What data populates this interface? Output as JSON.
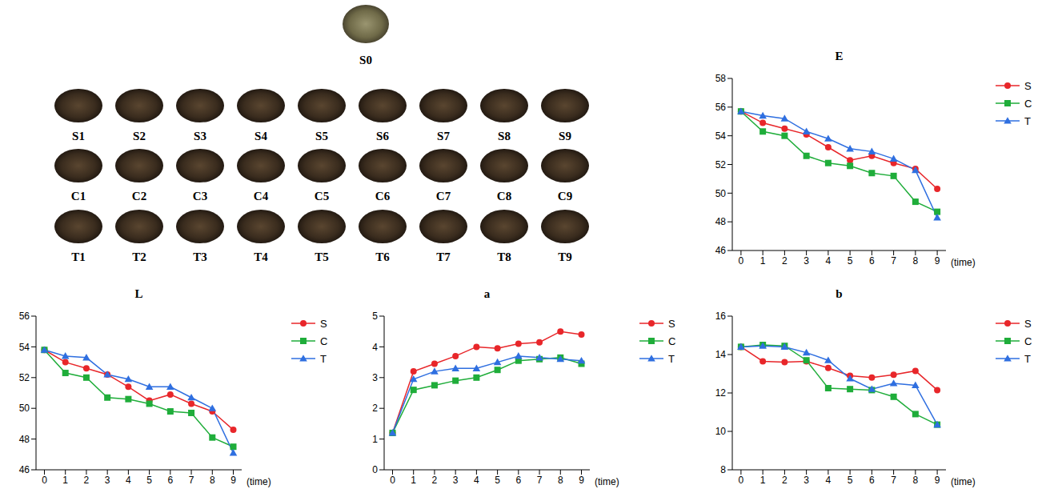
{
  "sample_images": {
    "top": "S0",
    "rows": [
      [
        "S1",
        "S2",
        "S3",
        "S4",
        "S5",
        "S6",
        "S7",
        "S8",
        "S9"
      ],
      [
        "C1",
        "C2",
        "C3",
        "C4",
        "C5",
        "C6",
        "C7",
        "C8",
        "C9"
      ],
      [
        "T1",
        "T2",
        "T3",
        "T4",
        "T5",
        "T6",
        "T7",
        "T8",
        "T9"
      ]
    ]
  },
  "chart_data": [
    {
      "type": "line",
      "title": "E",
      "x_label": "(time)",
      "x": [
        0,
        1,
        2,
        3,
        4,
        5,
        6,
        7,
        8,
        9
      ],
      "xlim": [
        -0.4,
        9.4
      ],
      "xticks": [
        0,
        1,
        2,
        3,
        4,
        5,
        6,
        7,
        8,
        9
      ],
      "ylim": [
        46,
        58
      ],
      "yticks": [
        46,
        48,
        50,
        52,
        54,
        56,
        58
      ],
      "legend": "right",
      "series": [
        {
          "name": "S",
          "color": "#e8262a",
          "marker": "circle",
          "values": [
            55.7,
            54.9,
            54.5,
            54.1,
            53.2,
            52.3,
            52.6,
            52.1,
            51.7,
            50.3
          ]
        },
        {
          "name": "C",
          "color": "#1fad3a",
          "marker": "square",
          "values": [
            55.7,
            54.3,
            54.0,
            52.6,
            52.1,
            51.9,
            51.4,
            51.2,
            49.4,
            48.7
          ]
        },
        {
          "name": "T",
          "color": "#2f6fe0",
          "marker": "triangle",
          "values": [
            55.7,
            55.4,
            55.2,
            54.3,
            53.8,
            53.1,
            52.9,
            52.4,
            51.6,
            48.3
          ]
        }
      ]
    },
    {
      "type": "line",
      "title": "L",
      "x_label": "(time)",
      "x": [
        0,
        1,
        2,
        3,
        4,
        5,
        6,
        7,
        8,
        9
      ],
      "xlim": [
        -0.4,
        9.4
      ],
      "xticks": [
        0,
        1,
        2,
        3,
        4,
        5,
        6,
        7,
        8,
        9
      ],
      "ylim": [
        46,
        56
      ],
      "yticks": [
        46,
        48,
        50,
        52,
        54,
        56
      ],
      "legend": "right",
      "series": [
        {
          "name": "S",
          "color": "#e8262a",
          "marker": "circle",
          "values": [
            53.8,
            53.0,
            52.6,
            52.2,
            51.4,
            50.5,
            50.9,
            50.3,
            49.8,
            48.6
          ]
        },
        {
          "name": "C",
          "color": "#1fad3a",
          "marker": "square",
          "values": [
            53.8,
            52.3,
            52.0,
            50.7,
            50.6,
            50.3,
            49.8,
            49.7,
            48.1,
            47.5
          ]
        },
        {
          "name": "T",
          "color": "#2f6fe0",
          "marker": "triangle",
          "values": [
            53.8,
            53.4,
            53.3,
            52.2,
            51.9,
            51.4,
            51.4,
            50.7,
            50.0,
            47.1
          ]
        }
      ]
    },
    {
      "type": "line",
      "title": "a",
      "x_label": "(time)",
      "x": [
        0,
        1,
        2,
        3,
        4,
        5,
        6,
        7,
        8,
        9
      ],
      "xlim": [
        -0.4,
        9.4
      ],
      "xticks": [
        0,
        1,
        2,
        3,
        4,
        5,
        6,
        7,
        8,
        9
      ],
      "ylim": [
        0,
        5
      ],
      "yticks": [
        0,
        1,
        2,
        3,
        4,
        5
      ],
      "legend": "right",
      "series": [
        {
          "name": "S",
          "color": "#e8262a",
          "marker": "circle",
          "values": [
            1.2,
            3.2,
            3.45,
            3.7,
            4.0,
            3.95,
            4.1,
            4.15,
            4.5,
            4.4
          ]
        },
        {
          "name": "C",
          "color": "#1fad3a",
          "marker": "square",
          "values": [
            1.2,
            2.6,
            2.75,
            2.9,
            3.0,
            3.25,
            3.55,
            3.6,
            3.65,
            3.45
          ]
        },
        {
          "name": "T",
          "color": "#2f6fe0",
          "marker": "triangle",
          "values": [
            1.2,
            2.95,
            3.2,
            3.3,
            3.3,
            3.5,
            3.7,
            3.65,
            3.6,
            3.55
          ]
        }
      ]
    },
    {
      "type": "line",
      "title": "b",
      "x_label": "(time)",
      "x": [
        0,
        1,
        2,
        3,
        4,
        5,
        6,
        7,
        8,
        9
      ],
      "xlim": [
        -0.4,
        9.4
      ],
      "xticks": [
        0,
        1,
        2,
        3,
        4,
        5,
        6,
        7,
        8,
        9
      ],
      "ylim": [
        8,
        16
      ],
      "yticks": [
        8,
        10,
        12,
        14,
        16
      ],
      "legend": "right",
      "series": [
        {
          "name": "S",
          "color": "#e8262a",
          "marker": "circle",
          "values": [
            14.4,
            13.65,
            13.6,
            13.65,
            13.3,
            12.9,
            12.8,
            12.95,
            13.15,
            12.15
          ]
        },
        {
          "name": "C",
          "color": "#1fad3a",
          "marker": "square",
          "values": [
            14.4,
            14.5,
            14.45,
            13.7,
            12.25,
            12.2,
            12.15,
            11.8,
            10.9,
            10.35
          ]
        },
        {
          "name": "T",
          "color": "#2f6fe0",
          "marker": "triangle",
          "values": [
            14.4,
            14.45,
            14.4,
            14.1,
            13.7,
            12.75,
            12.2,
            12.5,
            12.4,
            10.35
          ]
        }
      ]
    }
  ]
}
